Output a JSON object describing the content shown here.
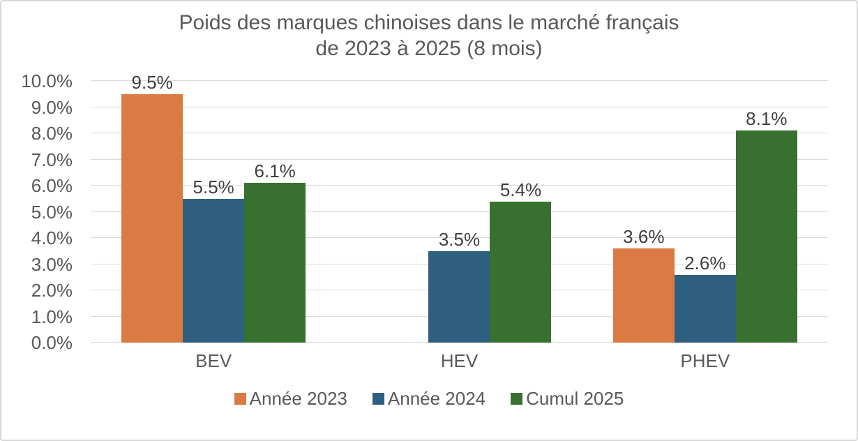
{
  "chart_data": {
    "type": "bar",
    "title": "Poids des marques chinoises dans le marché français de 2023 à 2025 (8 mois)",
    "title_lines": [
      "Poids des marques chinoises dans le marché français",
      "de 2023 à 2025 (8 mois)"
    ],
    "categories": [
      "BEV",
      "HEV",
      "PHEV"
    ],
    "series": [
      {
        "name": "Année 2023",
        "color": "#D97B42",
        "values": [
          9.5,
          null,
          3.6
        ],
        "data_labels": [
          "9.5%",
          "",
          "3.6%"
        ]
      },
      {
        "name": "Année 2024",
        "color": "#2F5F7E",
        "values": [
          5.5,
          3.5,
          2.6
        ],
        "data_labels": [
          "5.5%",
          "3.5%",
          "2.6%"
        ]
      },
      {
        "name": "Cumul 2025",
        "color": "#38702F",
        "values": [
          6.1,
          5.4,
          8.1
        ],
        "data_labels": [
          "6.1%",
          "5.4%",
          "8.1%"
        ]
      }
    ],
    "xlabel": "",
    "ylabel": "",
    "ylim": [
      0,
      10
    ],
    "ytick_step": 1,
    "ytick_labels": [
      "0.0%",
      "1.0%",
      "2.0%",
      "3.0%",
      "4.0%",
      "5.0%",
      "6.0%",
      "7.0%",
      "8.0%",
      "9.0%",
      "10.0%"
    ],
    "grid": true,
    "legend_position": "bottom"
  },
  "style": {
    "background": "#FFFFFF",
    "border_color": "#D8D8D8",
    "grid_color": "#D9D9D9",
    "axis_text_color": "#595959",
    "title_color": "#595959",
    "data_label_color": "#404040"
  }
}
